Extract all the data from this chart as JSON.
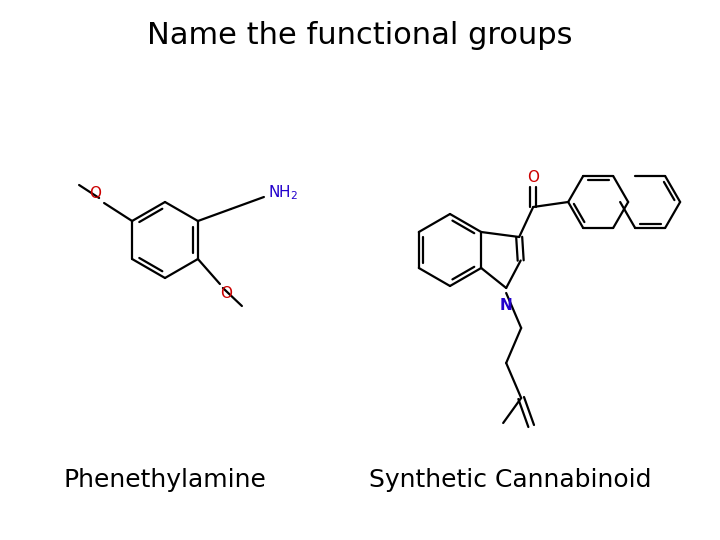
{
  "title": "Name the functional groups",
  "title_fontsize": 22,
  "label_left": "Phenethylamine",
  "label_right": "Synthetic Cannabinoid",
  "label_fontsize": 18,
  "bg_color": "#ffffff",
  "black": "#000000",
  "red": "#cc0000",
  "blue": "#2200cc"
}
